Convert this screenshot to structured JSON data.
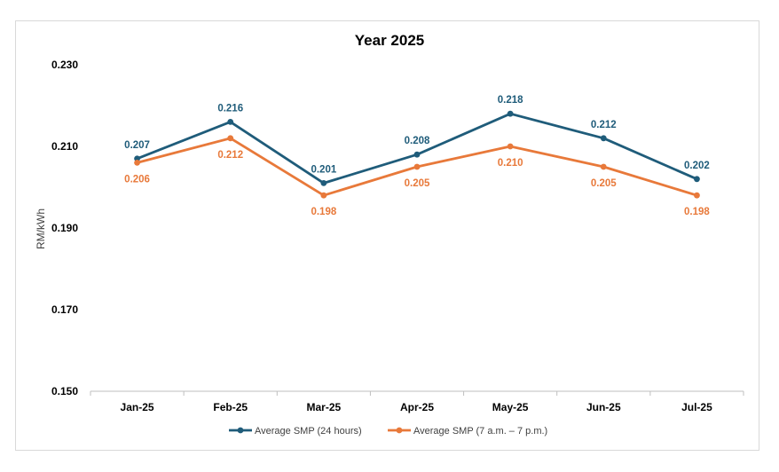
{
  "chart_data": {
    "type": "line",
    "title": "Year 2025",
    "xlabel": "",
    "ylabel": "RM/kWh",
    "categories": [
      "Jan-25",
      "Feb-25",
      "Mar-25",
      "Apr-25",
      "May-25",
      "Jun-25",
      "Jul-25"
    ],
    "ylim": [
      0.15,
      0.23
    ],
    "yticks": [
      "0.150",
      "0.170",
      "0.190",
      "0.210",
      "0.230"
    ],
    "grid": false,
    "legend_position": "bottom",
    "series": [
      {
        "name": "Average SMP (24 hours)",
        "color": "#1f5c7a",
        "values": [
          0.207,
          0.216,
          0.201,
          0.208,
          0.218,
          0.212,
          0.202
        ],
        "labels": [
          "0.207",
          "0.216",
          "0.201",
          "0.208",
          "0.218",
          "0.212",
          "0.202"
        ]
      },
      {
        "name": "Average SMP (7 a.m. – 7 p.m.)",
        "color": "#e8793a",
        "values": [
          0.206,
          0.212,
          0.198,
          0.205,
          0.21,
          0.205,
          0.198
        ],
        "labels": [
          "0.206",
          "0.212",
          "0.198",
          "0.205",
          "0.210",
          "0.205",
          "0.198"
        ]
      }
    ]
  }
}
